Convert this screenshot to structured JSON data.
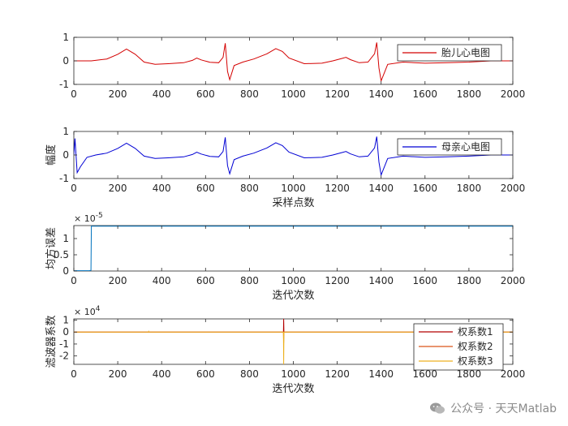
{
  "chart_data": [
    {
      "type": "line",
      "title": "",
      "xlabel": "",
      "ylabel": "",
      "xlim": [
        0,
        2000
      ],
      "ylim": [
        -1,
        1
      ],
      "xticks": [
        0,
        200,
        400,
        600,
        800,
        1000,
        1200,
        1400,
        1600,
        1800,
        2000
      ],
      "yticks": [
        -1,
        0,
        1
      ],
      "legend_position": "top-right",
      "series": [
        {
          "name": "胎儿心电图",
          "color": "#d40000",
          "x": [
            0,
            80,
            150,
            200,
            240,
            280,
            320,
            370,
            430,
            500,
            540,
            560,
            580,
            620,
            660,
            680,
            690,
            700,
            710,
            730,
            770,
            820,
            880,
            920,
            950,
            980,
            1050,
            1130,
            1180,
            1220,
            1240,
            1260,
            1300,
            1340,
            1370,
            1380,
            1390,
            1400,
            1430,
            1500,
            1600,
            1700,
            1800,
            1900,
            2000
          ],
          "y": [
            0,
            0,
            0.08,
            0.28,
            0.5,
            0.28,
            -0.05,
            -0.15,
            -0.12,
            -0.08,
            0.02,
            0.12,
            0.04,
            -0.06,
            -0.08,
            0.15,
            0.75,
            -0.45,
            -0.8,
            -0.2,
            -0.05,
            0.08,
            0.3,
            0.52,
            0.4,
            0.12,
            -0.12,
            -0.1,
            0,
            0.1,
            0.15,
            0.05,
            -0.08,
            -0.05,
            0.3,
            0.78,
            -0.3,
            -0.85,
            -0.15,
            -0.05,
            -0.1,
            -0.08,
            -0.05,
            0,
            0
          ]
        }
      ]
    },
    {
      "type": "line",
      "title": "",
      "xlabel": "采样点数",
      "ylabel": "幅度",
      "xlim": [
        0,
        2000
      ],
      "ylim": [
        -1,
        1
      ],
      "xticks": [
        0,
        200,
        400,
        600,
        800,
        1000,
        1200,
        1400,
        1600,
        1800,
        2000
      ],
      "yticks": [
        -1,
        0,
        1
      ],
      "legend_position": "top-right",
      "series": [
        {
          "name": "母亲心电图",
          "color": "#0000d4",
          "x": [
            0,
            5,
            15,
            30,
            60,
            100,
            150,
            200,
            240,
            280,
            320,
            370,
            430,
            500,
            540,
            560,
            580,
            620,
            660,
            680,
            690,
            700,
            710,
            730,
            770,
            820,
            880,
            920,
            950,
            980,
            1050,
            1130,
            1180,
            1220,
            1240,
            1260,
            1300,
            1340,
            1370,
            1380,
            1390,
            1400,
            1430,
            1500,
            1600,
            1700,
            1800,
            1900,
            2000
          ],
          "y": [
            0,
            0.7,
            -0.75,
            -0.5,
            -0.1,
            0,
            0.08,
            0.28,
            0.5,
            0.28,
            -0.05,
            -0.15,
            -0.12,
            -0.08,
            0.02,
            0.12,
            0.04,
            -0.06,
            -0.08,
            0.15,
            0.75,
            -0.45,
            -0.8,
            -0.2,
            -0.05,
            0.08,
            0.3,
            0.52,
            0.4,
            0.12,
            -0.12,
            -0.1,
            0,
            0.1,
            0.15,
            0.05,
            -0.08,
            -0.05,
            0.3,
            0.78,
            -0.3,
            -0.85,
            -0.15,
            -0.05,
            -0.1,
            -0.08,
            -0.05,
            0,
            0
          ]
        }
      ]
    },
    {
      "type": "line",
      "title": "",
      "xlabel": "迭代次数",
      "ylabel": "均方误差",
      "y_exponent_label": "× 10",
      "y_exponent": "-5",
      "xlim": [
        0,
        2000
      ],
      "ylim": [
        0,
        1.4
      ],
      "xticks": [
        0,
        200,
        400,
        600,
        800,
        1000,
        1200,
        1400,
        1600,
        1800,
        2000
      ],
      "yticks": [
        0,
        0.5,
        1
      ],
      "series": [
        {
          "name": "",
          "color": "#0072bd",
          "x": [
            0,
            70,
            78,
            80,
            2000
          ],
          "y": [
            0.01,
            0.01,
            0.02,
            1.38,
            1.38
          ]
        }
      ]
    },
    {
      "type": "line",
      "title": "",
      "xlabel": "迭代次数",
      "ylabel": "滤波器系数",
      "y_exponent_label": "× 10",
      "y_exponent": "4",
      "xlim": [
        0,
        2000
      ],
      "ylim": [
        -2.7,
        1.1
      ],
      "xticks": [
        0,
        200,
        400,
        600,
        800,
        1000,
        1200,
        1400,
        1600,
        1800,
        2000
      ],
      "yticks": [
        -2,
        -1,
        0,
        1
      ],
      "legend_position": "right",
      "series": [
        {
          "name": "权系数1",
          "color": "#b40000",
          "x": [
            0,
            955,
            956,
            957,
            958,
            2000
          ],
          "y": [
            0,
            0,
            1.1,
            0,
            0,
            0
          ]
        },
        {
          "name": "权系数2",
          "color": "#d95319",
          "x": [
            0,
            955,
            956,
            957,
            958,
            2000
          ],
          "y": [
            0,
            0,
            -0.9,
            0,
            0,
            0
          ]
        },
        {
          "name": "权系数3",
          "color": "#edb120",
          "x": [
            0,
            340,
            341,
            342,
            955,
            956,
            957,
            958,
            2000
          ],
          "y": [
            0,
            0,
            0.05,
            0,
            0,
            -2.7,
            0,
            0,
            0
          ]
        }
      ]
    }
  ],
  "watermark": {
    "icon": "wechat-icon",
    "text": "公众号 · 天天Matlab"
  }
}
